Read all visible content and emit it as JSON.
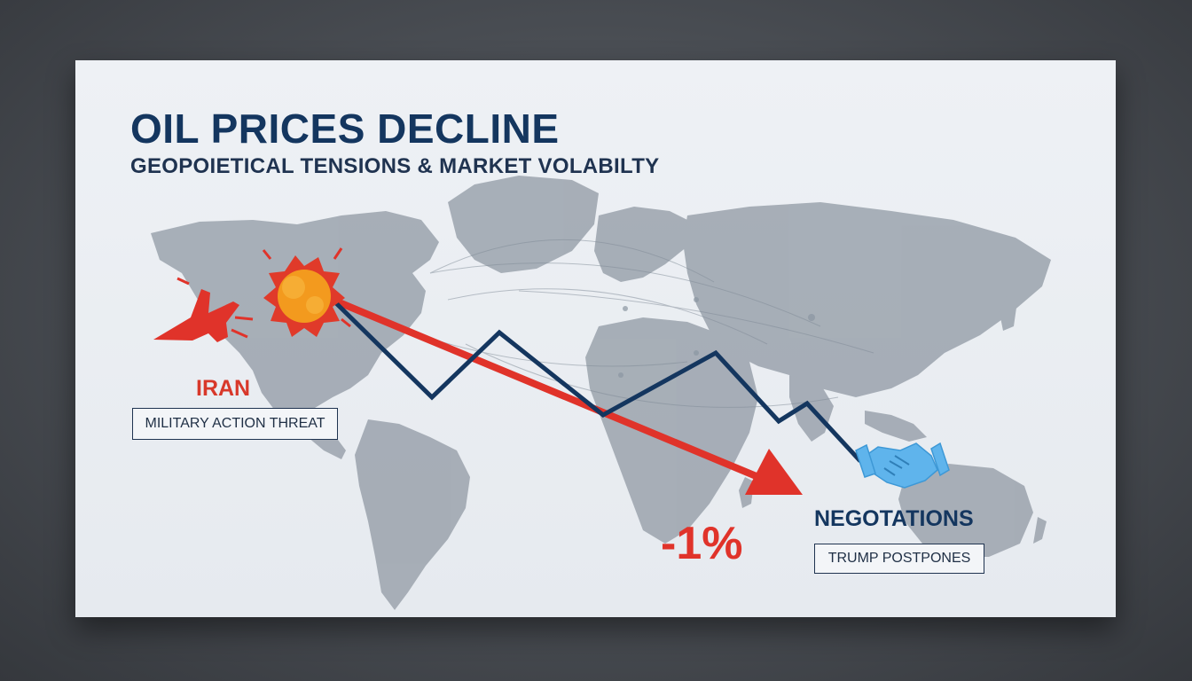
{
  "header": {
    "title": "OIL PRICES DECLINE",
    "subtitle": "GEOPOIETICAL TENSIONS & MARKET VOLABILTY"
  },
  "left_callout": {
    "label": "IRAN",
    "box_text": "MILITARY ACTION THREAT"
  },
  "change": {
    "value": "-1%"
  },
  "right_callout": {
    "label": "NEGOTATIONS",
    "box_text": "TRUMP POSTPONES"
  },
  "colors": {
    "navy": "#14365f",
    "red": "#e0332a",
    "orange": "#f39a1e",
    "map_gray": "#9aa3ad",
    "handshake_blue": "#5fb4ec"
  },
  "icons": [
    "fighter-jet-icon",
    "explosion-icon",
    "handshake-icon"
  ]
}
